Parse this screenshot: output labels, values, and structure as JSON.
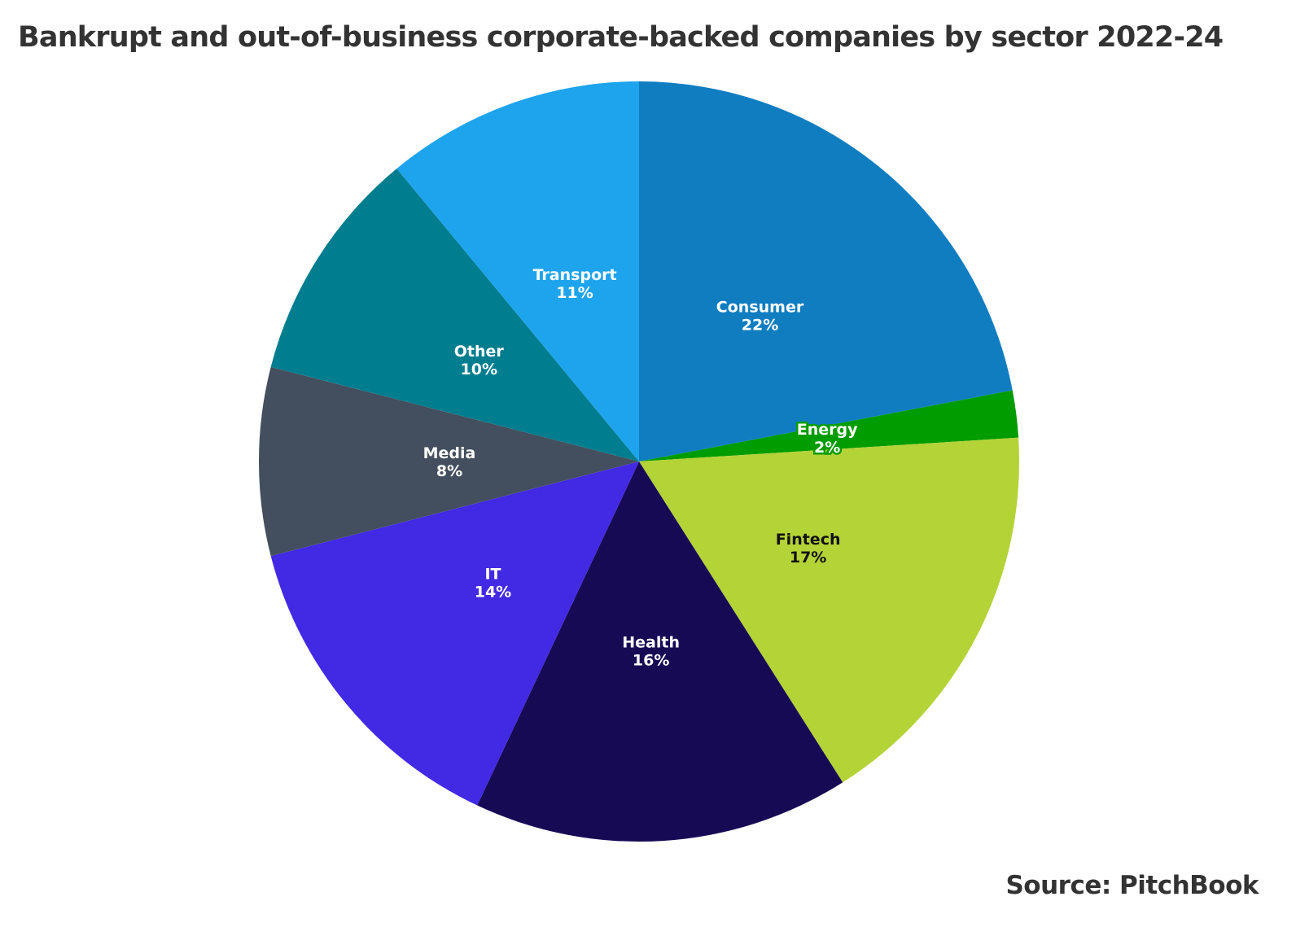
{
  "chart_data": {
    "type": "pie",
    "title": "Bankrupt and out-of-business corporate-backed companies by sector 2022-24",
    "source": "Source: PitchBook",
    "start": "top, clockwise",
    "slices": [
      {
        "label": "Consumer",
        "value": 22,
        "display": "22%",
        "color": "#107dc1",
        "text_color": "#ffffff"
      },
      {
        "label": "Energy",
        "value": 2,
        "display": "2%",
        "color": "#009c00",
        "text_color": "#ffffff"
      },
      {
        "label": "Fintech",
        "value": 17,
        "display": "17%",
        "color": "#b4d337",
        "text_color": "#111111"
      },
      {
        "label": "Health",
        "value": 16,
        "display": "16%",
        "color": "#170a55",
        "text_color": "#ffffff"
      },
      {
        "label": "IT",
        "value": 14,
        "display": "14%",
        "color": "#4229e4",
        "text_color": "#ffffff"
      },
      {
        "label": "Media",
        "value": 8,
        "display": "8%",
        "color": "#434f5e",
        "text_color": "#ffffff"
      },
      {
        "label": "Other",
        "value": 10,
        "display": "10%",
        "color": "#007d8e",
        "text_color": "#ffffff"
      },
      {
        "label": "Transport",
        "value": 11,
        "display": "11%",
        "color": "#1da4ec",
        "text_color": "#ffffff"
      }
    ]
  }
}
